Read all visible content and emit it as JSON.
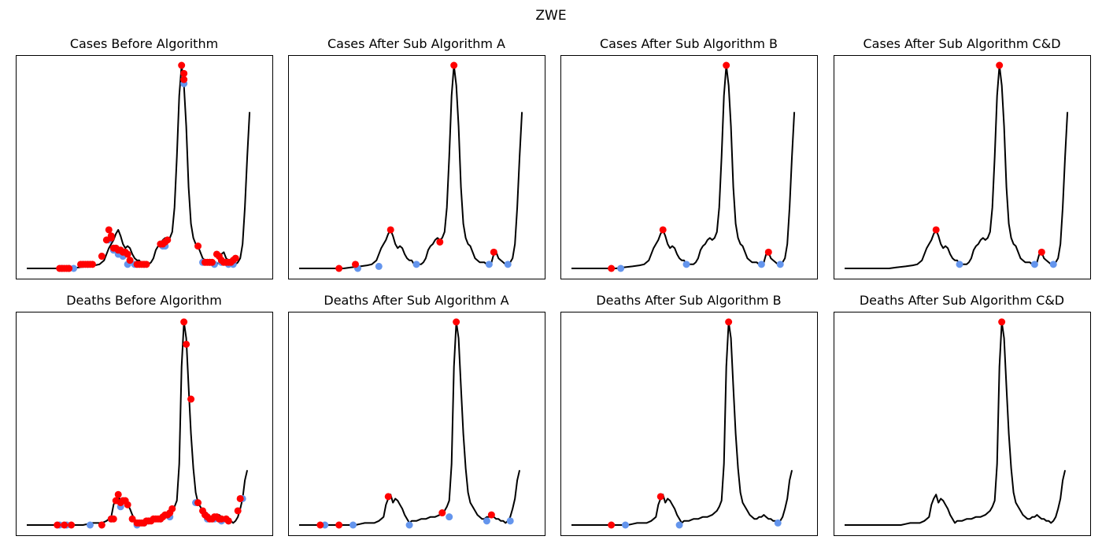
{
  "figure": {
    "title": "ZWE"
  },
  "colors": {
    "line": "#000000",
    "peak": "#ff0000",
    "trough": "#6495ed",
    "frame": "#000000"
  },
  "chart_data": [
    {
      "type": "line",
      "row": "cases",
      "title": "Cases Before Algorithm",
      "xlim": [
        0,
        100
      ],
      "ylim": [
        0,
        100
      ],
      "peaks": [
        [
          14,
          0
        ],
        [
          15,
          0
        ],
        [
          16,
          0
        ],
        [
          17,
          0
        ],
        [
          18,
          0
        ],
        [
          23,
          2
        ],
        [
          24,
          2
        ],
        [
          25,
          2
        ],
        [
          26,
          2
        ],
        [
          27,
          2
        ],
        [
          28,
          2
        ],
        [
          32,
          6
        ],
        [
          34,
          14
        ],
        [
          35,
          19
        ],
        [
          36,
          16
        ],
        [
          36,
          15
        ],
        [
          37,
          10
        ],
        [
          38,
          10
        ],
        [
          39,
          9
        ],
        [
          40,
          9
        ],
        [
          41,
          8
        ],
        [
          42,
          8
        ],
        [
          43,
          7
        ],
        [
          44,
          4
        ],
        [
          47,
          2
        ],
        [
          48,
          2
        ],
        [
          49,
          2
        ],
        [
          50,
          2
        ],
        [
          51,
          2
        ],
        [
          57,
          12
        ],
        [
          58,
          12
        ],
        [
          59,
          13
        ],
        [
          60,
          14
        ],
        [
          66,
          100
        ],
        [
          67,
          96
        ],
        [
          67,
          93
        ],
        [
          73,
          11
        ],
        [
          76,
          3
        ],
        [
          77,
          3
        ],
        [
          78,
          3
        ],
        [
          79,
          3
        ],
        [
          81,
          7
        ],
        [
          82,
          6
        ],
        [
          83,
          4
        ],
        [
          84,
          3
        ],
        [
          85,
          3
        ],
        [
          86,
          3
        ],
        [
          87,
          3
        ],
        [
          88,
          4
        ],
        [
          89,
          5
        ]
      ],
      "troughs": [
        [
          15,
          0
        ],
        [
          18,
          0
        ],
        [
          20,
          0
        ],
        [
          24,
          2
        ],
        [
          26,
          2
        ],
        [
          35,
          14
        ],
        [
          37,
          9
        ],
        [
          39,
          7
        ],
        [
          41,
          6
        ],
        [
          43,
          2
        ],
        [
          46,
          2
        ],
        [
          50,
          2
        ],
        [
          58,
          11
        ],
        [
          59,
          11
        ],
        [
          67,
          91
        ],
        [
          75,
          3
        ],
        [
          78,
          3
        ],
        [
          80,
          2
        ],
        [
          83,
          3
        ],
        [
          86,
          2
        ],
        [
          88,
          2
        ]
      ]
    },
    {
      "type": "line",
      "row": "cases",
      "title": "Cases After Sub Algorithm A",
      "xlim": [
        0,
        100
      ],
      "ylim": [
        0,
        100
      ],
      "peaks": [
        [
          17,
          0
        ],
        [
          24,
          2
        ],
        [
          39,
          19
        ],
        [
          60,
          13
        ],
        [
          66,
          100
        ],
        [
          83,
          8
        ]
      ],
      "troughs": [
        [
          25,
          0
        ],
        [
          34,
          1
        ],
        [
          50,
          2
        ],
        [
          81,
          2
        ],
        [
          89,
          2
        ]
      ]
    },
    {
      "type": "line",
      "row": "cases",
      "title": "Cases After Sub Algorithm B",
      "xlim": [
        0,
        100
      ],
      "ylim": [
        0,
        100
      ],
      "peaks": [
        [
          17,
          0
        ],
        [
          39,
          19
        ],
        [
          66,
          100
        ],
        [
          84,
          8
        ]
      ],
      "troughs": [
        [
          21,
          0
        ],
        [
          49,
          2
        ],
        [
          81,
          2
        ],
        [
          89,
          2
        ]
      ]
    },
    {
      "type": "line",
      "row": "cases",
      "title": "Cases After Sub Algorithm C&D",
      "xlim": [
        0,
        100
      ],
      "ylim": [
        0,
        100
      ],
      "peaks": [
        [
          39,
          19
        ],
        [
          66,
          100
        ],
        [
          84,
          8
        ]
      ],
      "troughs": [
        [
          49,
          2
        ],
        [
          81,
          2
        ],
        [
          89,
          2
        ]
      ]
    },
    {
      "type": "line",
      "row": "deaths",
      "title": "Deaths Before Algorithm",
      "xlim": [
        0,
        100
      ],
      "ylim": [
        0,
        100
      ],
      "peaks": [
        [
          13,
          0
        ],
        [
          16,
          0
        ],
        [
          19,
          0
        ],
        [
          32,
          0
        ],
        [
          36,
          3
        ],
        [
          37,
          3
        ],
        [
          38,
          12
        ],
        [
          39,
          15
        ],
        [
          40,
          11
        ],
        [
          41,
          12
        ],
        [
          42,
          12
        ],
        [
          43,
          10
        ],
        [
          45,
          3
        ],
        [
          47,
          1
        ],
        [
          48,
          1
        ],
        [
          49,
          1
        ],
        [
          50,
          1
        ],
        [
          51,
          2
        ],
        [
          52,
          2
        ],
        [
          53,
          2
        ],
        [
          54,
          3
        ],
        [
          55,
          3
        ],
        [
          56,
          3
        ],
        [
          57,
          3
        ],
        [
          58,
          4
        ],
        [
          59,
          5
        ],
        [
          60,
          5
        ],
        [
          61,
          6
        ],
        [
          62,
          8
        ],
        [
          67,
          100
        ],
        [
          68,
          89
        ],
        [
          70,
          62
        ],
        [
          73,
          11
        ],
        [
          75,
          7
        ],
        [
          76,
          5
        ],
        [
          77,
          4
        ],
        [
          78,
          3
        ],
        [
          79,
          3
        ],
        [
          80,
          4
        ],
        [
          81,
          4
        ],
        [
          82,
          3
        ],
        [
          83,
          3
        ],
        [
          85,
          3
        ],
        [
          86,
          2
        ],
        [
          90,
          7
        ],
        [
          91,
          13
        ]
      ],
      "troughs": [
        [
          14,
          0
        ],
        [
          17,
          0
        ],
        [
          27,
          0
        ],
        [
          36,
          3
        ],
        [
          40,
          9
        ],
        [
          47,
          0
        ],
        [
          50,
          1
        ],
        [
          52,
          2
        ],
        [
          57,
          3
        ],
        [
          61,
          4
        ],
        [
          72,
          11
        ],
        [
          77,
          3
        ],
        [
          80,
          3
        ],
        [
          83,
          2
        ],
        [
          86,
          2
        ],
        [
          92,
          13
        ]
      ]
    },
    {
      "type": "line",
      "row": "deaths",
      "title": "Deaths After Sub Algorithm A",
      "xlim": [
        0,
        100
      ],
      "ylim": [
        0,
        100
      ],
      "peaks": [
        [
          9,
          0
        ],
        [
          17,
          0
        ],
        [
          38,
          14
        ],
        [
          61,
          6
        ],
        [
          82,
          5
        ],
        [
          67,
          100
        ]
      ],
      "troughs": [
        [
          11,
          0
        ],
        [
          23,
          0
        ],
        [
          47,
          0
        ],
        [
          64,
          4
        ],
        [
          80,
          2
        ],
        [
          90,
          2
        ]
      ]
    },
    {
      "type": "line",
      "row": "deaths",
      "title": "Deaths After Sub Algorithm B",
      "xlim": [
        0,
        100
      ],
      "ylim": [
        0,
        100
      ],
      "peaks": [
        [
          17,
          0
        ],
        [
          38,
          14
        ],
        [
          67,
          100
        ]
      ],
      "troughs": [
        [
          23,
          0
        ],
        [
          46,
          0
        ],
        [
          88,
          1
        ]
      ]
    },
    {
      "type": "line",
      "row": "deaths",
      "title": "Deaths After Sub Algorithm C&D",
      "xlim": [
        0,
        100
      ],
      "ylim": [
        0,
        100
      ],
      "peaks": [
        [
          67,
          100
        ]
      ],
      "troughs": []
    }
  ]
}
